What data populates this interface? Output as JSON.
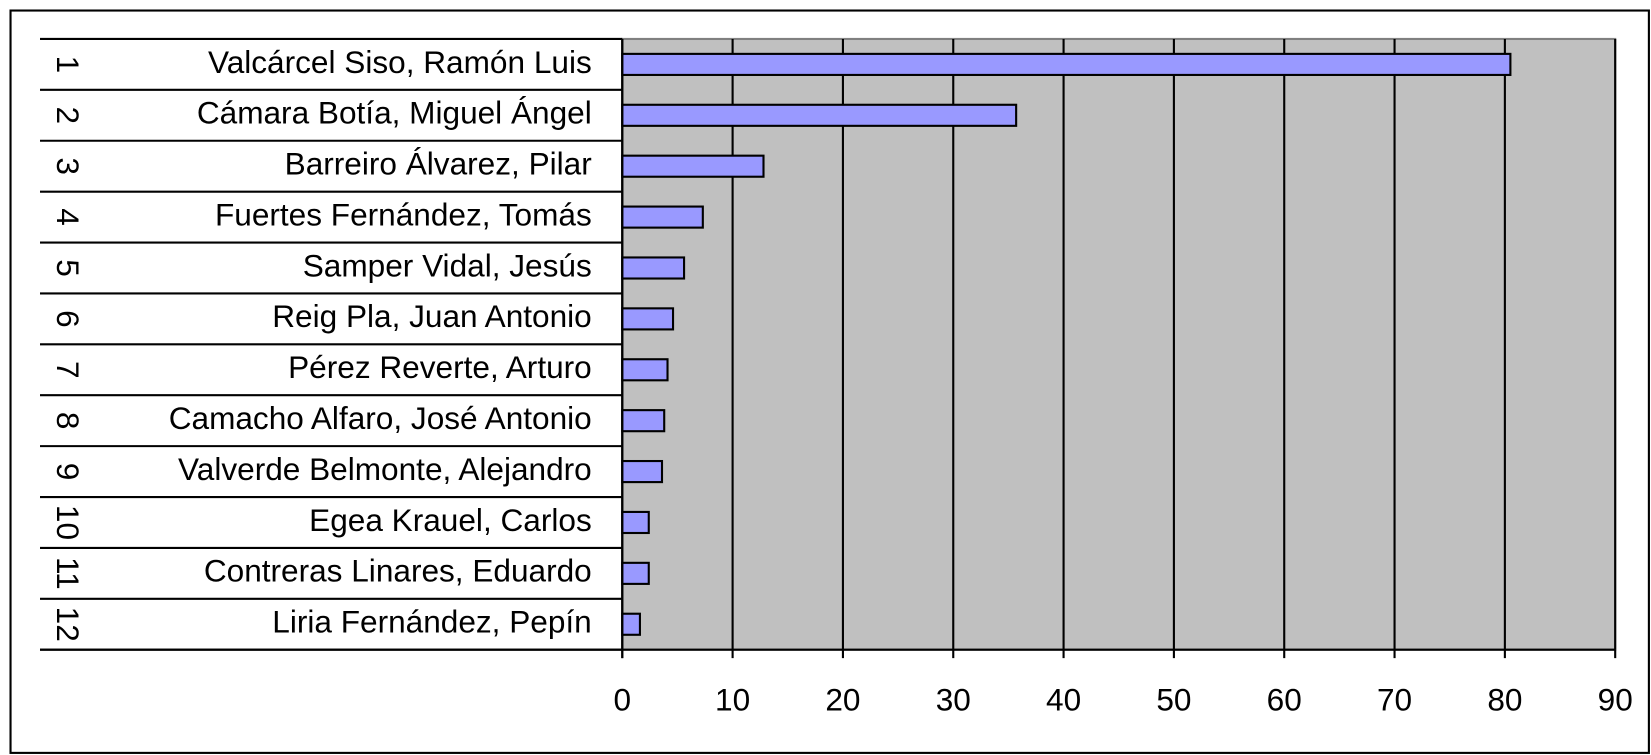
{
  "chart_data": {
    "type": "barh",
    "ranks": [
      1,
      2,
      3,
      4,
      5,
      6,
      7,
      8,
      9,
      10,
      11,
      12
    ],
    "categories": [
      "Valcárcel Siso, Ramón Luis",
      "Cámara Botía, Miguel Ángel",
      "Barreiro Álvarez, Pilar",
      "Fuertes Fernández, Tomás",
      "Samper Vidal, Jesús",
      "Reig Pla, Juan Antonio",
      "Pérez Reverte, Arturo",
      "Camacho Alfaro, José Antonio",
      "Valverde Belmonte, Alejandro",
      "Egea Krauel, Carlos",
      "Contreras Linares, Eduardo",
      "Liria Fernández, Pepín"
    ],
    "values": [
      80.5,
      35.7,
      12.8,
      7.3,
      5.6,
      4.6,
      4.1,
      3.8,
      3.6,
      2.4,
      2.4,
      1.6
    ],
    "color": "#9999ff",
    "background": "#c0c0c0",
    "xlim": [
      0,
      90
    ],
    "xticks": [
      0,
      10,
      20,
      30,
      40,
      50,
      60,
      70,
      80,
      90
    ],
    "grid": true
  }
}
